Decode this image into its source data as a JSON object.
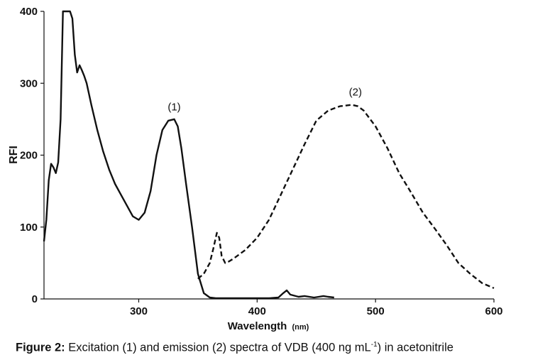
{
  "chart_data": {
    "type": "line",
    "xlabel": "Wavelength",
    "xlabel_unit": "(nm)",
    "ylabel": "RFI",
    "xlim": [
      220,
      600
    ],
    "ylim": [
      0,
      400
    ],
    "x_ticks": [
      "300",
      "400",
      "500",
      "600"
    ],
    "y_ticks": [
      "0",
      "100",
      "200",
      "300",
      "400"
    ],
    "series": [
      {
        "name": "(1)",
        "style": "solid",
        "x": [
          220,
          222,
          224,
          226,
          228,
          230,
          232,
          234,
          236,
          238,
          240,
          242,
          244,
          246,
          248,
          250,
          252,
          254,
          256,
          258,
          260,
          265,
          270,
          275,
          280,
          285,
          290,
          295,
          300,
          305,
          310,
          315,
          320,
          325,
          330,
          333,
          336,
          340,
          345,
          350,
          355,
          360,
          365,
          370,
          380,
          400,
          410,
          418,
          422,
          425,
          428,
          435,
          440,
          448,
          452,
          456,
          460,
          465
        ],
        "y": [
          80,
          110,
          165,
          188,
          183,
          175,
          190,
          250,
          400,
          400,
          400,
          400,
          390,
          340,
          315,
          325,
          318,
          310,
          300,
          285,
          270,
          235,
          205,
          180,
          160,
          145,
          130,
          115,
          110,
          120,
          150,
          200,
          235,
          248,
          250,
          240,
          210,
          160,
          100,
          35,
          8,
          2,
          1,
          1,
          1,
          1,
          1,
          2,
          8,
          12,
          6,
          3,
          4,
          2,
          3,
          4,
          3,
          2
        ]
      },
      {
        "name": "(2)",
        "style": "dashed",
        "x": [
          350,
          355,
          360,
          363,
          366,
          368,
          370,
          373,
          376,
          380,
          390,
          400,
          410,
          420,
          430,
          440,
          450,
          460,
          470,
          480,
          485,
          490,
          500,
          510,
          520,
          530,
          540,
          550,
          560,
          570,
          580,
          590,
          600
        ],
        "y": [
          28,
          35,
          50,
          70,
          92,
          85,
          60,
          50,
          52,
          56,
          68,
          85,
          110,
          145,
          180,
          215,
          248,
          262,
          268,
          270,
          268,
          262,
          240,
          210,
          175,
          148,
          120,
          98,
          75,
          50,
          35,
          22,
          15
        ]
      }
    ],
    "annotations": [
      {
        "text": "(1)",
        "x": 330,
        "y": 262
      },
      {
        "text": "(2)",
        "x": 483,
        "y": 283
      }
    ]
  },
  "caption": {
    "label": "Figure 2:",
    "text_before": "Excitation (1) and emission (2) spectra of VDB (400 ng mL",
    "superscript": "-1",
    "text_after": ") in acetonitrile"
  }
}
